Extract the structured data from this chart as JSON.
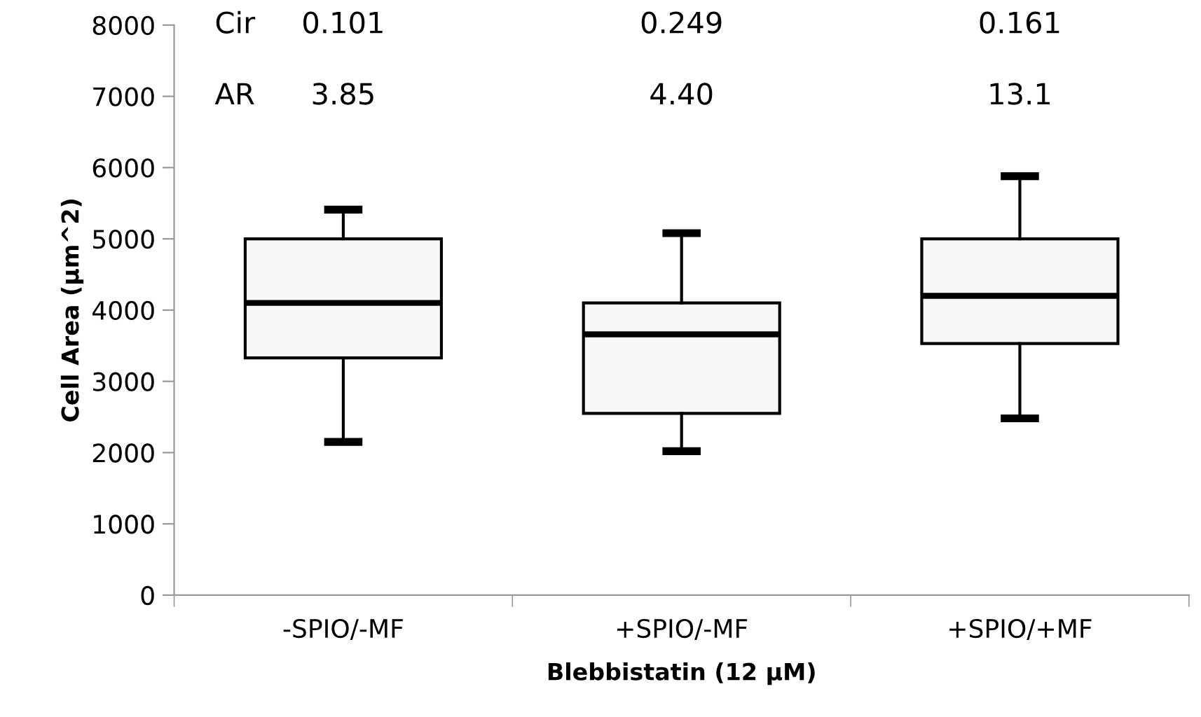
{
  "chart_data": {
    "type": "box",
    "xlabel": "Blebbistatin (12 µM)",
    "ylabel": "Cell Area (µm^2)",
    "categories": [
      "-SPIO/-MF",
      "+SPIO/-MF",
      "+SPIO/+MF"
    ],
    "boxes": [
      {
        "low": 2150,
        "q1": 3330,
        "median": 4100,
        "q3": 5000,
        "high": 5410
      },
      {
        "low": 2020,
        "q1": 2550,
        "median": 3660,
        "q3": 4100,
        "high": 5080
      },
      {
        "low": 2480,
        "q1": 3530,
        "median": 4200,
        "q3": 5000,
        "high": 5880
      }
    ],
    "color": "#f7f7f7",
    "ylim": [
      0,
      8000
    ],
    "yticks": [
      0,
      1000,
      2000,
      3000,
      4000,
      5000,
      6000,
      7000,
      8000
    ],
    "grid": false,
    "annotations": [
      "Cir",
      "0.101",
      "0.249",
      "0.161",
      "AR",
      "3.85",
      "4.40",
      "13.1"
    ]
  }
}
